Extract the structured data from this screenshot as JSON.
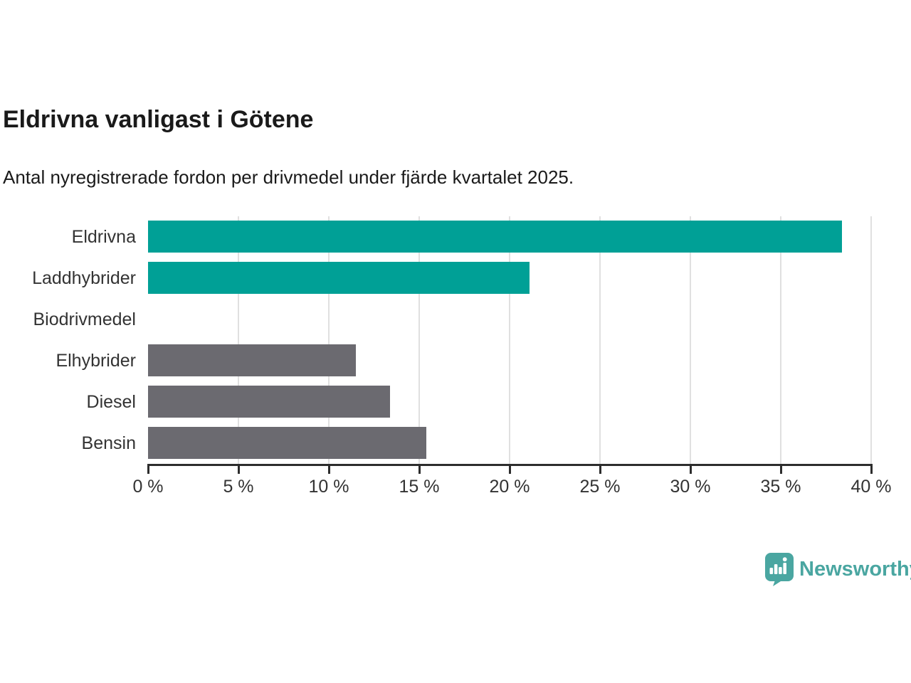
{
  "chart_data": {
    "type": "bar",
    "orientation": "horizontal",
    "title": "Eldrivna vanligast i Götene",
    "subtitle": "Antal nyregistrerade fordon per drivmedel under fjärde kvartalet 2025.",
    "categories": [
      "Eldrivna",
      "Laddhybrider",
      "Biodrivmedel",
      "Elhybrider",
      "Diesel",
      "Bensin"
    ],
    "values": [
      38.4,
      21.1,
      0,
      11.5,
      13.4,
      15.4
    ],
    "unit": "%",
    "xlabel": "",
    "ylabel": "",
    "xlim": [
      0,
      40
    ],
    "x_ticks": [
      0,
      5,
      10,
      15,
      20,
      25,
      30,
      35,
      40
    ],
    "x_tick_labels": [
      "0 %",
      "5 %",
      "10 %",
      "15 %",
      "20 %",
      "25 %",
      "30 %",
      "35 %",
      "40 %"
    ],
    "grid": true,
    "legend_position": "none",
    "bar_colors": [
      "#00a096",
      "#00a096",
      "#00a096",
      "#6b6a70",
      "#6b6a70",
      "#6b6a70"
    ],
    "colors": {
      "highlight": "#00a096",
      "default_bar": "#6b6a70",
      "grid": "#e0e0e0",
      "axis": "#2d2d2d",
      "tick_text": "#333333",
      "title_text": "#1a1a1a"
    }
  },
  "branding": {
    "logo_text": "Newsworthy",
    "logo_color": "#4aa6a1"
  }
}
